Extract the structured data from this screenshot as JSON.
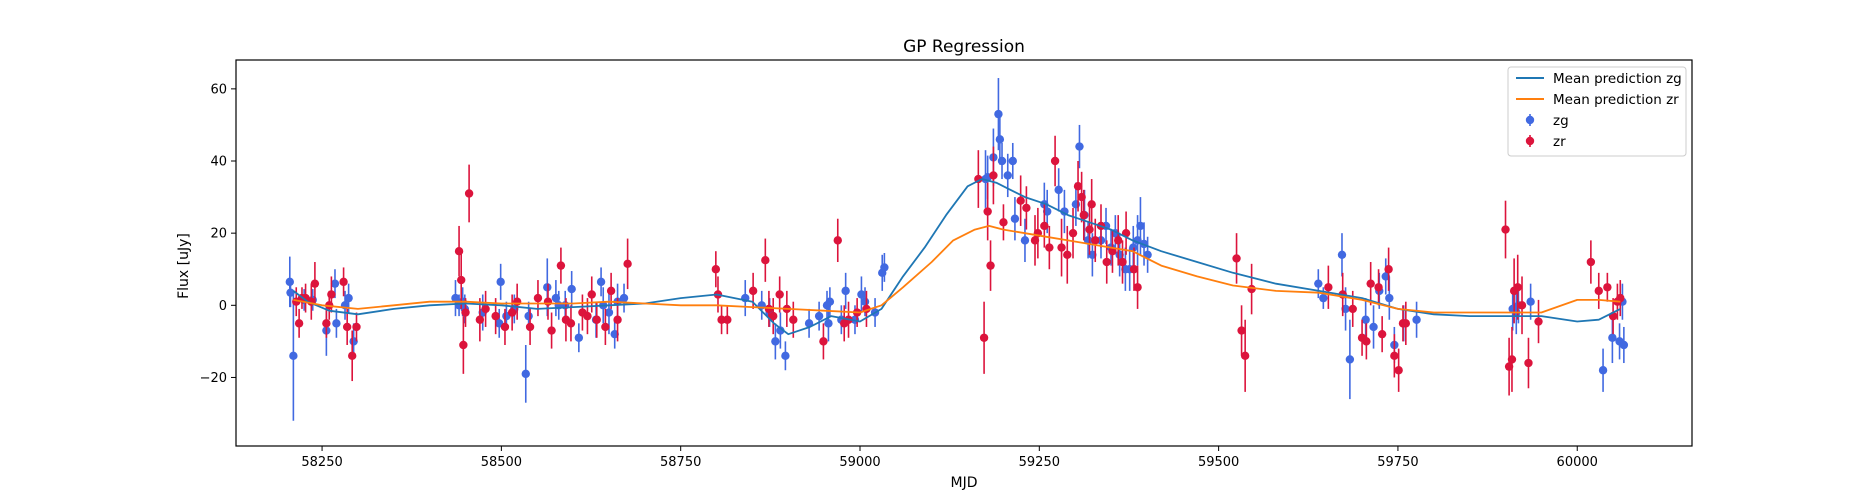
{
  "chart_data": {
    "type": "scatter",
    "title": "GP Regression",
    "xlabel": "MJD",
    "ylabel": "Flux [uJy]",
    "xlim": [
      58130,
      60160
    ],
    "ylim": [
      -39,
      68
    ],
    "xticks": [
      58250,
      58500,
      58750,
      59000,
      59250,
      59500,
      59750,
      60000
    ],
    "yticks": [
      -20,
      0,
      20,
      40,
      60
    ],
    "grid": false,
    "legend": {
      "position": "top-right",
      "entries": [
        "Mean prediction zg",
        "Mean prediction zr",
        "zg",
        "zr"
      ]
    },
    "colors": {
      "zg_points": "#4169E1",
      "zr_points": "#DC143C",
      "zg_mean": "#1f77b4",
      "zr_mean": "#ff7f0e"
    },
    "series": [
      {
        "name": "Mean prediction zg",
        "kind": "line",
        "x": [
          58210,
          58230,
          58260,
          58300,
          58350,
          58400,
          58450,
          58500,
          58550,
          58600,
          58650,
          58700,
          58750,
          58800,
          58850,
          58880,
          58900,
          58930,
          58960,
          59000,
          59030,
          59060,
          59090,
          59120,
          59150,
          59170,
          59190,
          59210,
          59230,
          59260,
          59290,
          59320,
          59350,
          59380,
          59420,
          59470,
          59520,
          59580,
          59640,
          59700,
          59750,
          59800,
          59850,
          59900,
          59950,
          60000,
          60030,
          60060
        ],
        "y": [
          4,
          1,
          -1.5,
          -2.5,
          -1,
          0,
          0.5,
          0,
          -1,
          -0.5,
          0,
          0.5,
          2,
          3,
          1,
          -5,
          -8,
          -6,
          -3,
          -4.5,
          -1,
          8,
          16,
          25,
          33,
          35,
          34,
          32,
          30,
          28,
          25,
          23,
          21,
          18,
          15,
          12,
          9,
          6,
          4,
          2,
          -1,
          -2.5,
          -3,
          -3,
          -3,
          -4.5,
          -4,
          -1
        ]
      },
      {
        "name": "Mean prediction zr",
        "kind": "line",
        "x": [
          58210,
          58250,
          58300,
          58350,
          58400,
          58450,
          58500,
          58550,
          58600,
          58650,
          58700,
          58750,
          58800,
          58850,
          58900,
          58950,
          59000,
          59030,
          59060,
          59100,
          59130,
          59160,
          59180,
          59200,
          59230,
          59260,
          59290,
          59320,
          59350,
          59380,
          59420,
          59470,
          59520,
          59580,
          59640,
          59700,
          59750,
          59800,
          59850,
          59900,
          59950,
          60000,
          60030,
          60060
        ],
        "y": [
          1.5,
          0,
          -1,
          0,
          1,
          1,
          0.5,
          0.5,
          0.5,
          1,
          0.5,
          0,
          0,
          -0.5,
          -1,
          -1.5,
          -2,
          0,
          5,
          12,
          18,
          21,
          22,
          21,
          20,
          19,
          18,
          17,
          16,
          15,
          11,
          8,
          5.5,
          4,
          3.5,
          1.5,
          -1,
          -2,
          -2,
          -2,
          -2,
          1.5,
          1.5,
          1
        ]
      },
      {
        "name": "zg",
        "kind": "errorbar",
        "x": [
          58205,
          58206,
          58210,
          58225,
          58237,
          58256,
          58268,
          58270,
          58282,
          58287,
          58294,
          58436,
          58441,
          58446,
          58449,
          58474,
          58497,
          58499,
          58507,
          58518,
          58534,
          58538,
          58564,
          58576,
          58580,
          58589,
          58598,
          58608,
          58632,
          58639,
          58642,
          58650,
          58658,
          58662,
          58671,
          58840,
          58863,
          58874,
          58882,
          58889,
          58896,
          58929,
          58943,
          58954,
          58956,
          58958,
          58974,
          58980,
          58993,
          59002,
          59007,
          59021,
          59031,
          59034,
          59175,
          59178,
          59186,
          59193,
          59195,
          59198,
          59206,
          59213,
          59216,
          59230,
          59257,
          59261,
          59277,
          59285,
          59301,
          59306,
          59313,
          59318,
          59324,
          59336,
          59343,
          59350,
          59356,
          59362,
          59370,
          59376,
          59381,
          59387,
          59391,
          59396,
          59401,
          59639,
          59646,
          59672,
          59677,
          59683,
          59705,
          59716,
          59724,
          59733,
          59738,
          59745,
          59758,
          59776,
          59910,
          59915,
          59918,
          59935,
          60036,
          60049,
          60059,
          60063,
          60065
        ],
        "y": [
          6.5,
          3.5,
          -14,
          1.5,
          1.5,
          -7,
          6,
          -5,
          0,
          2,
          -10,
          2,
          0,
          1,
          -1,
          -2,
          -5,
          6.5,
          -3,
          -1,
          -19,
          -3,
          5,
          2,
          0,
          0,
          4.5,
          -9,
          -4,
          6.5,
          0,
          -2,
          -8,
          1,
          2,
          2,
          0,
          -2,
          -10,
          -7,
          -14,
          -5,
          -3,
          0,
          -5,
          1,
          -4,
          4,
          -4,
          3,
          1,
          -2,
          9,
          10.5,
          35,
          35.5,
          41,
          53,
          46,
          40,
          36,
          40,
          24,
          18,
          28,
          26,
          32,
          26,
          28,
          44,
          25,
          18,
          14,
          18,
          22,
          16,
          20,
          14,
          10,
          10,
          16,
          18,
          22,
          17,
          14,
          6,
          2,
          14,
          -1,
          -15,
          -4,
          -6,
          4,
          8,
          2,
          -11,
          -5,
          -4,
          -1,
          -2,
          0,
          1,
          -18,
          -9,
          -10,
          1,
          -11
        ],
        "err": [
          7,
          4,
          18,
          3,
          3,
          7,
          4,
          4,
          4,
          4,
          5,
          5,
          3,
          4,
          4,
          5,
          4,
          5,
          4,
          4,
          8,
          4,
          8,
          5,
          4,
          4,
          5,
          4,
          5,
          4,
          5,
          6,
          4,
          5,
          4,
          5,
          4,
          4,
          5,
          5,
          4,
          4,
          4,
          4,
          5,
          4,
          4,
          5,
          4,
          5,
          4,
          4,
          5,
          4,
          8,
          6,
          8,
          10,
          7,
          5,
          6,
          5,
          6,
          6,
          6,
          6,
          6,
          6,
          6,
          6,
          7,
          5,
          6,
          5,
          5,
          5,
          5,
          6,
          6,
          6,
          6,
          7,
          8,
          6,
          5,
          4,
          3,
          6,
          6,
          11,
          6,
          6,
          5,
          5,
          6,
          5,
          5,
          5,
          6,
          6,
          5,
          5,
          6,
          7,
          5,
          5,
          5
        ]
      },
      {
        "name": "zr",
        "kind": "errorbar",
        "x": [
          58214,
          58218,
          58222,
          58227,
          58235,
          58240,
          58256,
          58260,
          58263,
          58280,
          58285,
          58292,
          58298,
          58441,
          58444,
          58447,
          58450,
          58455,
          58470,
          58478,
          58492,
          58505,
          58515,
          58522,
          58540,
          58551,
          58565,
          58570,
          58583,
          58590,
          58597,
          58613,
          58620,
          58626,
          58633,
          58645,
          58653,
          58662,
          58676,
          58799,
          58802,
          58807,
          58815,
          58851,
          58868,
          58873,
          58879,
          58888,
          58898,
          58907,
          58949,
          58969,
          58978,
          58984,
          58996,
          59009,
          59165,
          59173,
          59178,
          59182,
          59186,
          59200,
          59224,
          59232,
          59244,
          59248,
          59257,
          59264,
          59272,
          59281,
          59289,
          59297,
          59304,
          59309,
          59312,
          59320,
          59323,
          59328,
          59336,
          59344,
          59352,
          59360,
          59366,
          59371,
          59382,
          59387,
          59525,
          59532,
          59537,
          59546,
          59653,
          59673,
          59687,
          59700,
          59706,
          59712,
          59723,
          59728,
          59737,
          59745,
          59751,
          59757,
          59761,
          59900,
          59905,
          59909,
          59912,
          59917,
          59923,
          59932,
          59946,
          60019,
          60030,
          60042,
          60050,
          60056,
          60060
        ],
        "y": [
          1,
          -5,
          2,
          2,
          1,
          6,
          -5,
          0,
          3,
          6.5,
          -6,
          -14,
          -6,
          15,
          7,
          -11,
          -2,
          31,
          -4,
          -1,
          -3,
          -6,
          -2,
          1,
          -6,
          2,
          1,
          -7,
          11,
          -4,
          -5,
          -2,
          -3,
          3,
          -4,
          -6,
          4,
          -4,
          11.5,
          10,
          3,
          -4,
          -4,
          4,
          12.5,
          -1,
          -3,
          3,
          -1,
          -4,
          -10,
          18,
          -5,
          -4,
          -2,
          -1,
          35,
          -9,
          26,
          11,
          36,
          23,
          29,
          27,
          18,
          20,
          22,
          16,
          40,
          16,
          14,
          20,
          33,
          30,
          25,
          21,
          28,
          18,
          22,
          12,
          15,
          18,
          12,
          20,
          10,
          5,
          13,
          -7,
          -14,
          4.5,
          5,
          3,
          -1,
          -9,
          -10,
          6,
          5,
          -8,
          10,
          -14,
          -18,
          -5,
          -5,
          21,
          -17,
          -15,
          4,
          5,
          0,
          -16,
          -4.5,
          12,
          4,
          5,
          -3,
          1,
          2
        ],
        "err": [
          4,
          4,
          3,
          4,
          5,
          6,
          4,
          4,
          5,
          4,
          5,
          7,
          4,
          7,
          8,
          8,
          4,
          8,
          6,
          5,
          5,
          5,
          5,
          5,
          5,
          5,
          5,
          5,
          5,
          6,
          5,
          5,
          5,
          5,
          5,
          5,
          5,
          6,
          7,
          5,
          5,
          4,
          4,
          5,
          6,
          5,
          5,
          5,
          5,
          5,
          5,
          6,
          5,
          5,
          4,
          5,
          8,
          10,
          8,
          7,
          8,
          5,
          7,
          6,
          7,
          7,
          6,
          6,
          7,
          8,
          8,
          7,
          7,
          7,
          7,
          7,
          7,
          6,
          6,
          6,
          6,
          7,
          6,
          6,
          6,
          6,
          7,
          7,
          10,
          7,
          6,
          6,
          5,
          5,
          5,
          6,
          5,
          5,
          6,
          6,
          6,
          5,
          6,
          8,
          8,
          9,
          9,
          9,
          8,
          7,
          6,
          6,
          5,
          4,
          5,
          5,
          5
        ]
      }
    ]
  }
}
